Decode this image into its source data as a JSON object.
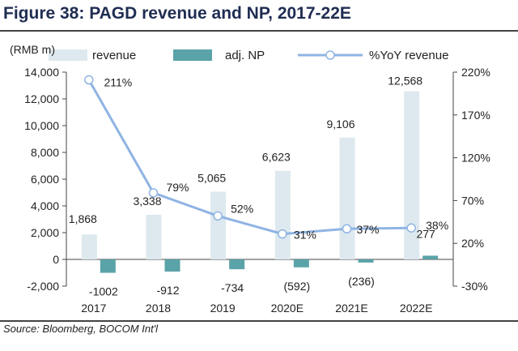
{
  "figure": {
    "title": "Figure 38: PAGD revenue and NP, 2017-22E",
    "source": "Source: Bloomberg, BOCOM Int'l"
  },
  "colors": {
    "revenue": "#dde9ee",
    "adj_np": "#5aa3a8",
    "yoy": "#8fb4e3"
  },
  "chart_data": {
    "type": "bar",
    "categories": [
      "2017",
      "2018",
      "2019",
      "2020E",
      "2021E",
      "2022E"
    ],
    "series": [
      {
        "name": "revenue",
        "type": "bar",
        "axis": "left",
        "values": [
          1868,
          3338,
          5065,
          6623,
          9106,
          12568
        ],
        "labels": [
          "1,868",
          "3,338",
          "5,065",
          "6,623",
          "9,106",
          "12,568"
        ]
      },
      {
        "name": "adj. NP",
        "type": "bar",
        "axis": "left",
        "values": [
          -1002,
          -912,
          -734,
          -592,
          -236,
          277
        ],
        "labels": [
          "-1002",
          "-912",
          "-734",
          "(592)",
          "(236)",
          "277"
        ]
      },
      {
        "name": "%YoY revenue",
        "type": "line",
        "axis": "right",
        "values": [
          211,
          79,
          52,
          31,
          37,
          38
        ],
        "labels": [
          "211%",
          "79%",
          "52%",
          "31%",
          "37%",
          "38%"
        ]
      }
    ],
    "ylabel": "(RMB m)",
    "ylim": [
      -2000,
      14000
    ],
    "yticks": [
      "-2,000",
      "0",
      "2,000",
      "4,000",
      "6,000",
      "8,000",
      "10,000",
      "12,000",
      "14,000"
    ],
    "y2lim": [
      -30,
      220
    ],
    "y2ticks": [
      "-30%",
      "20%",
      "70%",
      "120%",
      "170%",
      "220%"
    ],
    "legend_position": "top",
    "grid": false
  }
}
